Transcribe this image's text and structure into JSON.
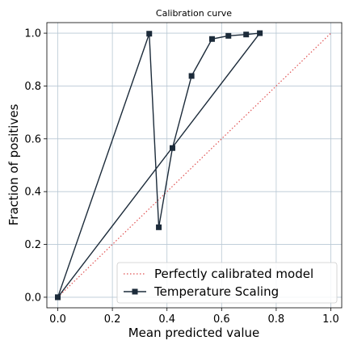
{
  "chart_data": {
    "type": "line",
    "title": "Calibration curve",
    "xlabel": "Mean predicted value",
    "ylabel": "Fraction of positives",
    "xlim": [
      -0.04,
      1.04
    ],
    "ylim": [
      -0.04,
      1.04
    ],
    "xticks": [
      0.0,
      0.2,
      0.4,
      0.6,
      0.8,
      1.0
    ],
    "yticks": [
      0.0,
      0.2,
      0.4,
      0.6,
      0.8,
      1.0
    ],
    "xtick_labels": [
      "0.0",
      "0.2",
      "0.4",
      "0.6",
      "0.8",
      "1.0"
    ],
    "ytick_labels": [
      "0.0",
      "0.2",
      "0.4",
      "0.6",
      "0.8",
      "1.0"
    ],
    "grid": true,
    "legend_position": "bottom-right",
    "series": [
      {
        "name": "Perfectly calibrated model",
        "style": "dotted",
        "color": "#e05252",
        "x": [
          0.0,
          1.0
        ],
        "y": [
          0.0,
          1.0
        ]
      },
      {
        "name": "Temperature Scaling",
        "style": "solid",
        "marker": "square",
        "color": "#1c2b3a",
        "x": [
          0.0,
          0.335,
          0.37,
          0.42,
          0.49,
          0.565,
          0.625,
          0.69,
          0.74,
          0.0
        ],
        "y": [
          0.0,
          0.998,
          0.265,
          0.565,
          0.838,
          0.978,
          0.99,
          0.995,
          1.0,
          0.0
        ]
      }
    ]
  }
}
